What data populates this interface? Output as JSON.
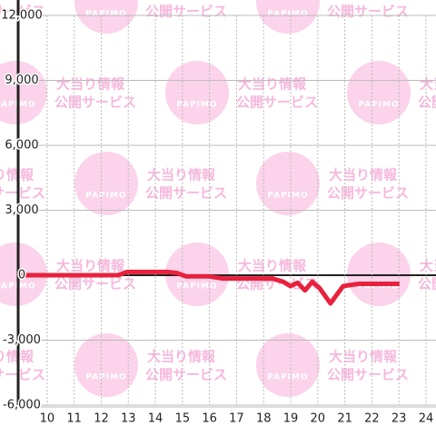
{
  "chart_data": {
    "type": "line",
    "x": [
      8.93,
      12.62,
      12.95,
      14.46,
      14.8,
      15.13,
      15.97,
      16.48,
      18.32,
      18.72,
      18.99,
      19.26,
      19.53,
      19.8,
      20.07,
      20.47,
      20.94,
      21.51,
      23.02
    ],
    "series": [
      {
        "color": "#e8213c",
        "values": [
          0,
          0,
          150,
          150,
          100,
          -50,
          -50,
          -150,
          -150,
          -300,
          -500,
          -350,
          -700,
          -300,
          -600,
          -1300,
          -500,
          -400,
          -400
        ]
      }
    ],
    "xlim": [
      8.93,
      24.37
    ],
    "xticks": [
      10,
      11,
      12,
      13,
      14,
      15,
      16,
      17,
      18,
      19,
      20,
      21,
      22,
      23,
      24
    ],
    "ylim": [
      -6000,
      12000
    ],
    "yticks": [
      {
        "value": 12000,
        "label": "12,000"
      },
      {
        "value": 9000,
        "label": "9,000"
      },
      {
        "value": 6000,
        "label": "6,000"
      },
      {
        "value": 3000,
        "label": "3,000"
      },
      0,
      {
        "value": -3000,
        "label": "-3,000"
      },
      {
        "value": -6000,
        "label": "-6,000"
      }
    ],
    "grid": true
  },
  "watermark": {
    "logo": "PAPIMO",
    "line1": "大当り情報",
    "line2": "公開サービス"
  }
}
